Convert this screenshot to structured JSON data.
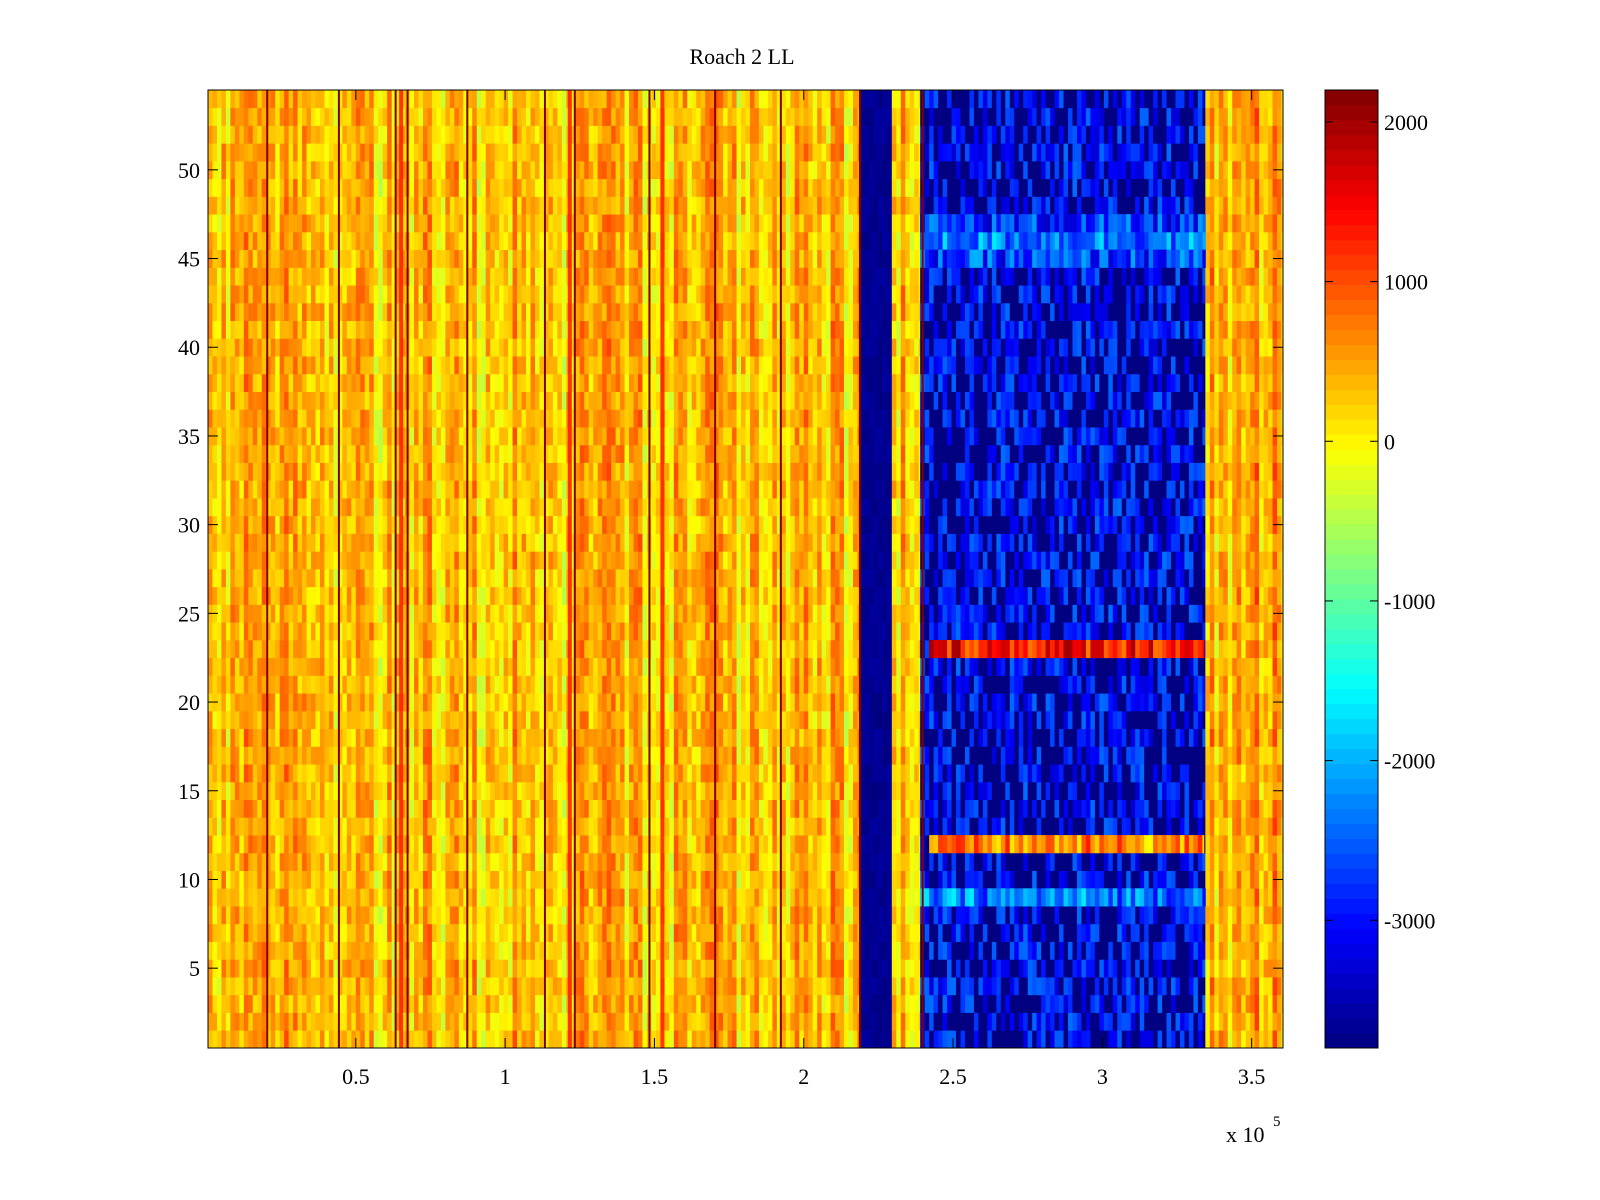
{
  "chart_data": {
    "type": "heatmap",
    "title": "Roach 2 LL",
    "xlabel": "",
    "ylabel": "",
    "x_exponent_label": "x 10",
    "x_exponent_power": "5",
    "xlim": [
      500,
      360500
    ],
    "ylim": [
      0.5,
      54.5
    ],
    "rows": 54,
    "xticks": [
      {
        "value": 50000,
        "label": "0.5"
      },
      {
        "value": 100000,
        "label": "1"
      },
      {
        "value": 150000,
        "label": "1.5"
      },
      {
        "value": 200000,
        "label": "2"
      },
      {
        "value": 250000,
        "label": "2.5"
      },
      {
        "value": 300000,
        "label": "3"
      },
      {
        "value": 350000,
        "label": "3.5"
      }
    ],
    "yticks": [
      {
        "value": 5,
        "label": "5"
      },
      {
        "value": 10,
        "label": "10"
      },
      {
        "value": 15,
        "label": "15"
      },
      {
        "value": 20,
        "label": "20"
      },
      {
        "value": 25,
        "label": "25"
      },
      {
        "value": 30,
        "label": "30"
      },
      {
        "value": 35,
        "label": "35"
      },
      {
        "value": 40,
        "label": "40"
      },
      {
        "value": 45,
        "label": "45"
      },
      {
        "value": 50,
        "label": "50"
      }
    ],
    "colorbar": {
      "colormap": "jet",
      "clim": [
        -3800,
        2200
      ],
      "ticks": [
        {
          "value": 2000,
          "label": "2000"
        },
        {
          "value": 1000,
          "label": "1000"
        },
        {
          "value": 0,
          "label": "0"
        },
        {
          "value": -1000,
          "label": "-1000"
        },
        {
          "value": -2000,
          "label": "-2000"
        },
        {
          "value": -3000,
          "label": "-3000"
        }
      ]
    },
    "regions": [
      {
        "x_start": 500,
        "x_end": 219000,
        "base_value": 300,
        "description_level": "high"
      },
      {
        "x_start": 219000,
        "x_end": 229500,
        "base_value": -3800
      },
      {
        "x_start": 229500,
        "x_end": 239000,
        "base_value": 300
      },
      {
        "x_start": 239000,
        "x_end": 334500,
        "base_value": -3300
      },
      {
        "x_start": 334500,
        "x_end": 360500,
        "base_value": 400
      }
    ],
    "dark_vertical_lines_x": [
      20000,
      44000,
      63000,
      67000,
      87000,
      113000,
      123000,
      148000,
      170000,
      192000,
      218500,
      239500
    ],
    "bright_vertical_lines_x": [
      64500,
      121000,
      152000
    ],
    "row_highlights": [
      {
        "row": 23,
        "x_start": 242000,
        "x_end": 334000,
        "value": 1400
      },
      {
        "row": 12,
        "x_start": 242000,
        "x_end": 334000,
        "value": 600
      },
      {
        "row": 46,
        "x_start": 239000,
        "x_end": 334500,
        "value": -2300
      },
      {
        "row": 45,
        "x_start": 239000,
        "x_end": 334500,
        "value": -2700
      },
      {
        "row": 9,
        "x_start": 239000,
        "x_end": 334500,
        "value": -2300
      },
      {
        "row": 47,
        "x_start": 239000,
        "x_end": 334500,
        "value": -2800
      }
    ]
  }
}
